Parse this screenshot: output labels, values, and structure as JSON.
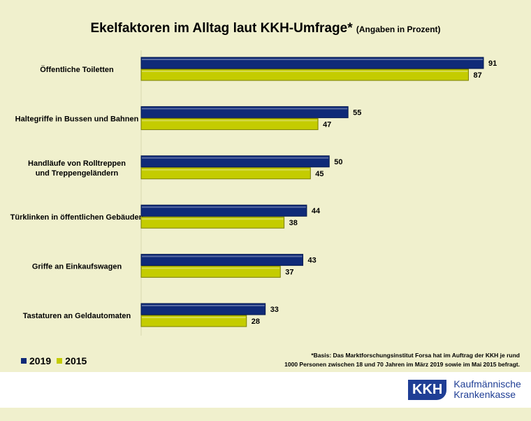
{
  "chart_data": {
    "type": "bar",
    "orientation": "horizontal",
    "title": "Ekelfaktoren im Alltag laut KKH-Umfrage*",
    "subtitle": "(Angaben in Prozent)",
    "categories": [
      "Öffentliche Toiletten",
      "Haltegriffe in Bussen und Bahnen",
      "Handläufe von Rolltreppen und Treppengeländern",
      "Türklinken in öffentlichen Gebäuden",
      "Griffe an Einkaufswagen",
      "Tastaturen an Geldautomaten"
    ],
    "series": [
      {
        "name": "2019",
        "color": "#0f2a78",
        "values": [
          91,
          55,
          50,
          44,
          43,
          33
        ]
      },
      {
        "name": "2015",
        "color": "#c4cc00",
        "values": [
          87,
          47,
          45,
          38,
          37,
          28
        ]
      }
    ],
    "xlim": [
      0,
      100
    ],
    "grid": false,
    "legend": "bottom-left"
  },
  "footnote": [
    "*Basis: Das Marktforschungsinstitut Forsa hat im Auftrag der KKH je rund",
    "1000 Personen zwischen 18 und 70 Jahren im März 2019 sowie im Mai 2015 befragt."
  ],
  "logo": {
    "mark": "KKH",
    "line1": "Kaufmännische",
    "line2": "Krankenkasse",
    "color": "#1f3e95"
  }
}
